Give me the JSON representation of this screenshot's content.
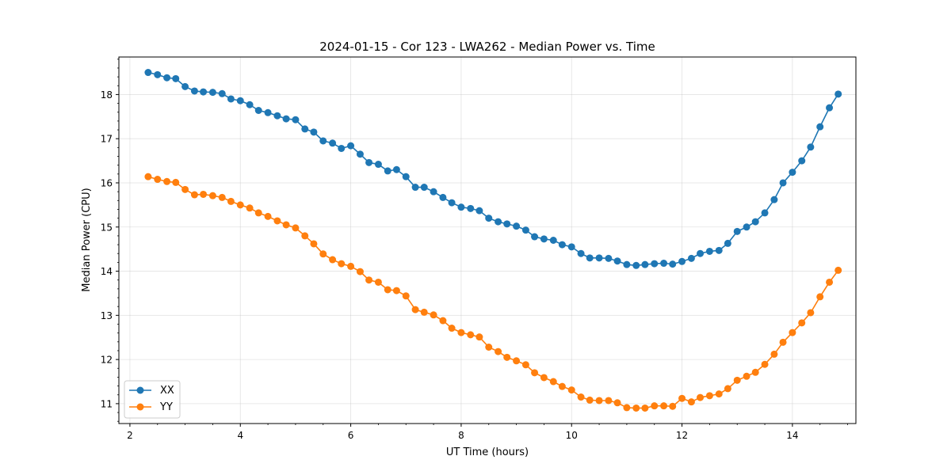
{
  "chart_data": {
    "type": "line",
    "title": "2024-01-15 - Cor 123 - LWA262 - Median Power vs. Time",
    "xlabel": "UT Time (hours)",
    "ylabel": "Median Power (CPU)",
    "xlim": [
      1.8,
      15.15
    ],
    "ylim": [
      10.55,
      18.85
    ],
    "xticks": [
      2,
      4,
      6,
      8,
      10,
      12,
      14
    ],
    "xtick_labels": [
      "2",
      "4",
      "6",
      "8",
      "10",
      "12",
      "14"
    ],
    "yticks": [
      11,
      12,
      13,
      14,
      15,
      16,
      17,
      18
    ],
    "ytick_labels": [
      "11",
      "12",
      "13",
      "14",
      "15",
      "16",
      "17",
      "18"
    ],
    "grid": true,
    "legend_position": "bottom-left",
    "x": [
      2.33,
      2.5,
      2.67,
      2.83,
      3.0,
      3.17,
      3.33,
      3.5,
      3.67,
      3.83,
      4.0,
      4.17,
      4.33,
      4.5,
      4.67,
      4.83,
      5.0,
      5.17,
      5.33,
      5.5,
      5.67,
      5.83,
      6.0,
      6.17,
      6.33,
      6.5,
      6.67,
      6.83,
      7.0,
      7.17,
      7.33,
      7.5,
      7.67,
      7.83,
      8.0,
      8.17,
      8.33,
      8.5,
      8.67,
      8.83,
      9.0,
      9.17,
      9.33,
      9.5,
      9.67,
      9.83,
      10.0,
      10.17,
      10.33,
      10.5,
      10.67,
      10.83,
      11.0,
      11.17,
      11.33,
      11.5,
      11.67,
      11.83,
      12.0,
      12.17,
      12.33,
      12.5,
      12.67,
      12.83,
      13.0,
      13.17,
      13.33,
      13.5,
      13.67,
      13.83,
      14.0,
      14.17,
      14.33,
      14.5,
      14.67,
      14.83
    ],
    "series": [
      {
        "name": "XX",
        "color": "#1f77b4",
        "values": [
          18.5,
          18.45,
          18.38,
          18.36,
          18.18,
          18.08,
          18.06,
          18.05,
          18.02,
          17.9,
          17.86,
          17.77,
          17.64,
          17.59,
          17.52,
          17.45,
          17.43,
          17.22,
          17.15,
          16.95,
          16.9,
          16.78,
          16.84,
          16.65,
          16.46,
          16.42,
          16.27,
          16.3,
          16.14,
          15.9,
          15.9,
          15.8,
          15.67,
          15.55,
          15.45,
          15.42,
          15.37,
          15.2,
          15.12,
          15.07,
          15.02,
          14.93,
          14.78,
          14.73,
          14.7,
          14.6,
          14.55,
          14.4,
          14.3,
          14.3,
          14.29,
          14.23,
          14.15,
          14.13,
          14.15,
          14.17,
          14.18,
          14.16,
          14.22,
          14.29,
          14.4,
          14.45,
          14.47,
          14.63,
          14.9,
          15.0,
          15.12,
          15.32,
          15.62,
          16.0,
          16.24,
          16.5,
          16.81,
          17.27,
          17.7,
          18.01
        ]
      },
      {
        "name": "YY",
        "color": "#ff7f0e",
        "values": [
          16.14,
          16.08,
          16.03,
          16.01,
          15.85,
          15.73,
          15.74,
          15.71,
          15.67,
          15.58,
          15.5,
          15.43,
          15.32,
          15.24,
          15.14,
          15.05,
          14.98,
          14.8,
          14.62,
          14.39,
          14.26,
          14.17,
          14.11,
          13.99,
          13.8,
          13.75,
          13.58,
          13.56,
          13.44,
          13.13,
          13.07,
          13.01,
          12.88,
          12.71,
          12.61,
          12.56,
          12.51,
          12.28,
          12.18,
          12.05,
          11.97,
          11.88,
          11.7,
          11.59,
          11.5,
          11.39,
          11.31,
          11.15,
          11.08,
          11.07,
          11.07,
          11.02,
          10.91,
          10.9,
          10.9,
          10.95,
          10.95,
          10.94,
          11.12,
          11.04,
          11.14,
          11.18,
          11.22,
          11.34,
          11.53,
          11.62,
          11.71,
          11.89,
          12.12,
          12.39,
          12.61,
          12.83,
          13.06,
          13.42,
          13.75,
          14.02
        ]
      }
    ]
  }
}
